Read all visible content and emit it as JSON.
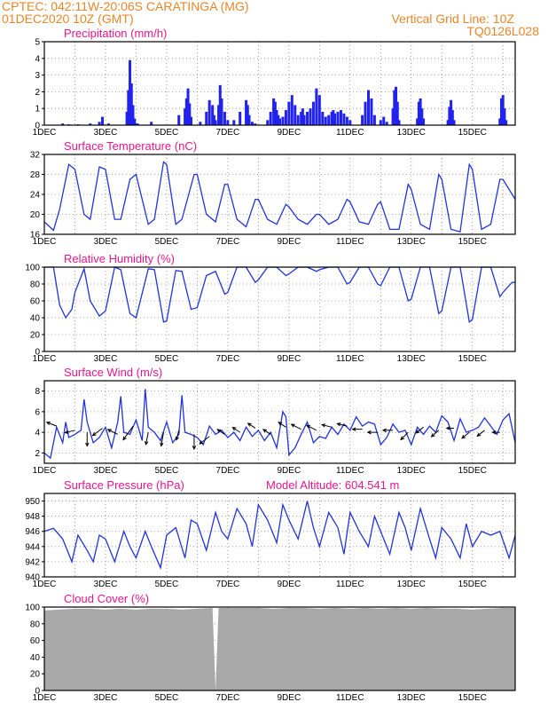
{
  "header": {
    "line1": "CPTEC:   042:11W-20:06S   CARATINGA (MG)",
    "line2": "01DEC2020 10Z (GMT)",
    "grid_note": "Vertical Grid Line: 10Z",
    "code": "TQ0126L028"
  },
  "colors": {
    "header": "#e8862a",
    "titles": "#e8168c",
    "line": "#2233dd",
    "bars": "#2222ee",
    "cloud": "#a8a8a8",
    "wind": "#000000"
  },
  "x_axis": {
    "labels": [
      "1DEC",
      "3DEC",
      "5DEC",
      "7DEC",
      "9DEC",
      "11DEC",
      "13DEC",
      "15DEC"
    ],
    "start_day": 1,
    "end_day": 16.4,
    "day_labels_step": 2
  },
  "chart_data": [
    {
      "type": "bar",
      "title": "Precipitation (mm/h)",
      "ylim": [
        0,
        5
      ],
      "yticks": [
        0,
        1,
        2,
        3,
        4,
        5
      ],
      "series": [
        {
          "name": "",
          "x": [
            1.6,
            1.8,
            2.1,
            2.5,
            2.8,
            2.9,
            3.1,
            3.7,
            3.75,
            3.8,
            3.85,
            3.9,
            3.95,
            4.0,
            4.05,
            4.5,
            5.4,
            5.6,
            5.65,
            5.7,
            5.75,
            5.8,
            6.1,
            6.3,
            6.4,
            6.5,
            6.55,
            6.6,
            6.7,
            6.75,
            6.8,
            6.9,
            7.0,
            7.2,
            7.4,
            7.6,
            7.65,
            7.7,
            7.8,
            7.9,
            8.3,
            8.4,
            8.5,
            8.55,
            8.6,
            8.65,
            8.7,
            8.8,
            8.9,
            9.0,
            9.1,
            9.2,
            9.3,
            9.4,
            9.45,
            9.5,
            9.6,
            9.7,
            9.8,
            9.9,
            10.0,
            10.1,
            10.2,
            10.3,
            10.4,
            10.45,
            10.5,
            10.6,
            10.7,
            10.8,
            10.9,
            11.0,
            11.4,
            11.5,
            11.6,
            11.7,
            11.8,
            12.0,
            12.1,
            12.2,
            12.4,
            12.45,
            12.5,
            12.55,
            12.6,
            13.2,
            13.25,
            13.3,
            13.35,
            13.4,
            14.2,
            14.25,
            14.3,
            14.35,
            14.4,
            15.9,
            15.95,
            16.0,
            16.05,
            16.1
          ],
          "values": [
            0.1,
            0.05,
            0.05,
            0.1,
            0.2,
            0.5,
            0.1,
            0.8,
            2.1,
            3.9,
            2.5,
            1.2,
            0.4,
            0.1,
            0.1,
            0.2,
            0.6,
            1.0,
            1.6,
            2.2,
            1.3,
            0.5,
            0.2,
            0.8,
            1.5,
            1.2,
            0.6,
            0.3,
            1.2,
            2.4,
            1.6,
            0.8,
            0.3,
            0.3,
            0.8,
            1.5,
            1.2,
            0.6,
            0.2,
            0.1,
            0.3,
            0.8,
            1.6,
            1.4,
            0.9,
            0.6,
            0.4,
            0.5,
            0.9,
            1.4,
            1.8,
            1.2,
            0.6,
            0.8,
            1.0,
            0.6,
            0.8,
            1.0,
            1.4,
            2.2,
            1.8,
            0.8,
            0.5,
            0.6,
            0.8,
            0.9,
            0.7,
            0.8,
            0.9,
            0.7,
            0.5,
            0.3,
            0.6,
            1.4,
            2.1,
            1.6,
            0.6,
            0.3,
            0.5,
            0.2,
            1.0,
            2.1,
            2.3,
            1.4,
            0.3,
            0.4,
            1.4,
            1.6,
            1.0,
            0.4,
            0.3,
            1.1,
            1.5,
            0.9,
            0.3,
            0.4,
            1.6,
            1.8,
            1.0,
            0.3
          ]
        }
      ]
    },
    {
      "type": "line",
      "title": "Surface Temperature (nC)",
      "ylim": [
        16,
        32
      ],
      "yticks": [
        16,
        20,
        24,
        28,
        32
      ],
      "series": [
        {
          "name": "",
          "x": [
            1.0,
            1.3,
            1.5,
            1.8,
            2.0,
            2.3,
            2.5,
            2.8,
            3.0,
            3.3,
            3.5,
            3.8,
            4.0,
            4.4,
            4.6,
            4.9,
            5.0,
            5.3,
            5.5,
            5.9,
            6.0,
            6.3,
            6.6,
            6.9,
            7.0,
            7.3,
            7.6,
            7.9,
            8.0,
            8.3,
            8.6,
            8.9,
            9.0,
            9.3,
            9.6,
            9.9,
            10.0,
            10.3,
            10.6,
            10.9,
            11.0,
            11.3,
            11.6,
            11.9,
            12.0,
            12.3,
            12.6,
            12.9,
            13.0,
            13.3,
            13.6,
            13.9,
            14.0,
            14.3,
            14.6,
            14.9,
            15.0,
            15.3,
            15.6,
            15.9,
            16.0,
            16.3,
            16.4
          ],
          "values": [
            18.5,
            16.8,
            21,
            30,
            29,
            20,
            19,
            29.5,
            29,
            19,
            19,
            27,
            28,
            18,
            19,
            30.5,
            30,
            18,
            19,
            28,
            28,
            20,
            18.5,
            26,
            26,
            19,
            17.5,
            23,
            23,
            19,
            18,
            22,
            21.5,
            19,
            18,
            20,
            20,
            18,
            19,
            23,
            22.5,
            18.5,
            18,
            22,
            22.5,
            17,
            17,
            26,
            25,
            18,
            17,
            28,
            27,
            17,
            16.5,
            30,
            29,
            17,
            18,
            27,
            27,
            24,
            23
          ]
        }
      ]
    },
    {
      "type": "line",
      "title": "Relative Humidity (%)",
      "ylim": [
        0,
        100
      ],
      "yticks": [
        0,
        20,
        40,
        60,
        80,
        100
      ],
      "series": [
        {
          "name": "",
          "x": [
            1.0,
            1.3,
            1.5,
            1.7,
            1.9,
            2.0,
            2.3,
            2.5,
            2.8,
            3.0,
            3.3,
            3.5,
            3.8,
            4.0,
            4.4,
            4.6,
            4.9,
            5.0,
            5.3,
            5.5,
            5.8,
            6.0,
            6.3,
            6.6,
            6.9,
            7.0,
            7.3,
            7.6,
            7.9,
            8.0,
            8.3,
            8.6,
            8.9,
            9.0,
            9.3,
            9.6,
            9.9,
            10.0,
            10.3,
            10.6,
            10.9,
            11.0,
            11.3,
            11.6,
            11.9,
            12.0,
            12.3,
            12.6,
            12.9,
            13.0,
            13.3,
            13.6,
            13.9,
            14.0,
            14.3,
            14.6,
            14.9,
            15.0,
            15.3,
            15.6,
            15.9,
            16.0,
            16.3,
            16.4
          ],
          "values": [
            100,
            100,
            55,
            40,
            50,
            70,
            98,
            60,
            42,
            48,
            100,
            97,
            45,
            40,
            98,
            97,
            35,
            36,
            96,
            95,
            50,
            52,
            90,
            95,
            68,
            70,
            100,
            100,
            82,
            85,
            100,
            100,
            90,
            92,
            100,
            100,
            95,
            97,
            100,
            100,
            80,
            82,
            100,
            100,
            80,
            78,
            100,
            100,
            60,
            62,
            100,
            100,
            45,
            48,
            100,
            100,
            35,
            38,
            100,
            100,
            65,
            70,
            82,
            82
          ]
        }
      ]
    },
    {
      "type": "line",
      "title": "Surface Wind (m/s)",
      "ylim": [
        1,
        9
      ],
      "yticks": [
        2,
        4,
        6,
        8
      ],
      "series": [
        {
          "name": "",
          "x": [
            1.0,
            1.2,
            1.4,
            1.6,
            1.7,
            1.8,
            2.0,
            2.2,
            2.3,
            2.4,
            2.6,
            2.8,
            3.0,
            3.2,
            3.4,
            3.5,
            3.6,
            3.8,
            4.0,
            4.2,
            4.3,
            4.4,
            4.6,
            4.8,
            5.0,
            5.2,
            5.4,
            5.5,
            5.6,
            5.8,
            6.0,
            6.2,
            6.4,
            6.6,
            6.8,
            7.0,
            7.2,
            7.4,
            7.6,
            7.8,
            8.0,
            8.2,
            8.4,
            8.6,
            8.8,
            8.9,
            9.0,
            9.2,
            9.4,
            9.6,
            9.8,
            10.0,
            10.2,
            10.4,
            10.6,
            10.8,
            11.0,
            11.2,
            11.4,
            11.6,
            11.8,
            12.0,
            12.2,
            12.4,
            12.6,
            12.8,
            13.0,
            13.2,
            13.4,
            13.6,
            13.8,
            14.0,
            14.2,
            14.4,
            14.6,
            14.8,
            15.0,
            15.2,
            15.4,
            15.6,
            15.8,
            16.0,
            16.2,
            16.4
          ],
          "values": [
            2.0,
            1.5,
            4.5,
            3.0,
            5.0,
            3.5,
            3.8,
            4.2,
            7.2,
            5.0,
            3.0,
            3.5,
            4.5,
            2.5,
            5.0,
            7.5,
            4.0,
            3.8,
            5.2,
            3.2,
            8.2,
            4.5,
            4.0,
            3.2,
            5.0,
            3.0,
            3.8,
            7.6,
            4.0,
            3.8,
            3.5,
            2.8,
            4.6,
            3.8,
            4.2,
            3.5,
            4.0,
            3.2,
            4.5,
            3.6,
            4.2,
            3.2,
            4.0,
            2.5,
            6.0,
            5.5,
            1.8,
            2.5,
            3.8,
            5.0,
            3.0,
            3.6,
            3.4,
            4.5,
            3.8,
            4.8,
            4.2,
            5.5,
            4.6,
            5.0,
            4.8,
            2.8,
            3.5,
            4.8,
            4.0,
            4.2,
            2.8,
            4.5,
            3.8,
            4.6,
            4.0,
            5.6,
            5.0,
            3.2,
            5.3,
            4.0,
            4.2,
            4.5,
            5.4,
            4.6,
            3.8,
            5.2,
            5.8,
            3.0
          ]
        }
      ],
      "wind_vectors": {
        "x": [
          1.4,
          2.0,
          2.4,
          2.9,
          3.4,
          3.9,
          4.4,
          4.9,
          5.4,
          5.9,
          6.4,
          6.9,
          7.4,
          7.9,
          8.4,
          8.9,
          9.4,
          9.9,
          10.4,
          10.9,
          11.4,
          11.9,
          12.4,
          12.9,
          13.4,
          13.9,
          14.4,
          14.9,
          15.4,
          15.9
        ],
        "y": [
          4.6,
          4.2,
          4.0,
          4.4,
          3.8,
          4.6,
          4.0,
          4.0,
          4.2,
          3.8,
          3.6,
          3.8,
          4.0,
          4.4,
          3.8,
          4.5,
          4.3,
          4.2,
          4.5,
          4.6,
          4.3,
          4.0,
          4.2,
          4.0,
          4.5,
          4.2,
          4.4,
          4.0,
          4.2,
          4.0
        ],
        "u": [
          -2,
          -2,
          0,
          -2,
          -2,
          -2,
          -0.5,
          -0.5,
          -0.5,
          0,
          -2,
          -1.5,
          -1.5,
          -1.5,
          -1.5,
          -1.5,
          -2,
          -2,
          -2,
          -2,
          -2,
          -2,
          -2,
          -1.5,
          -1.5,
          -1.5,
          -1.5,
          -1.5,
          -1.5,
          -1.5
        ],
        "v": [
          0.8,
          -0.5,
          -2.8,
          -1.5,
          1.0,
          -2.8,
          -2.5,
          -2.8,
          -2.0,
          -3.0,
          -1.5,
          1.0,
          1.0,
          1.0,
          1.0,
          1.0,
          1.0,
          1.0,
          0.5,
          0.5,
          0,
          0,
          0,
          -1.5,
          -1.2,
          -1.3,
          0,
          -1.2,
          -1.2,
          0
        ]
      }
    },
    {
      "type": "line",
      "title": "Surface Pressure (hPa)",
      "annotation": "Model Altitude: 604.541 m",
      "ylim": [
        940,
        951
      ],
      "yticks": [
        940,
        942,
        944,
        946,
        948,
        950
      ],
      "series": [
        {
          "name": "",
          "x": [
            1.0,
            1.3,
            1.6,
            1.9,
            2.1,
            2.4,
            2.6,
            2.8,
            3.0,
            3.3,
            3.6,
            3.8,
            4.0,
            4.3,
            4.5,
            4.8,
            5.0,
            5.3,
            5.6,
            5.8,
            6.0,
            6.3,
            6.6,
            6.8,
            7.0,
            7.3,
            7.6,
            7.8,
            8.0,
            8.3,
            8.6,
            8.8,
            9.0,
            9.3,
            9.6,
            9.8,
            10.0,
            10.3,
            10.6,
            10.8,
            11.0,
            11.3,
            11.6,
            11.8,
            12.0,
            12.3,
            12.6,
            12.8,
            13.0,
            13.3,
            13.6,
            13.8,
            14.0,
            14.3,
            14.6,
            14.8,
            15.0,
            15.3,
            15.6,
            15.9,
            16.2,
            16.4
          ],
          "values": [
            946,
            946.4,
            945,
            942,
            945.5,
            943.5,
            942,
            945.5,
            945,
            942,
            946,
            944,
            942.5,
            946,
            944,
            941.2,
            945.5,
            946.5,
            942.5,
            947.5,
            947,
            943.5,
            948.5,
            946,
            945,
            949,
            947,
            944,
            949.5,
            947.5,
            944.5,
            949.5,
            947.5,
            945,
            950,
            946.5,
            944,
            948.5,
            946.5,
            943,
            948.5,
            946,
            944,
            948,
            946,
            943,
            948.5,
            946.5,
            943.5,
            949,
            945,
            942.5,
            946.5,
            945,
            942.5,
            947,
            944,
            946,
            945.5,
            946,
            942.5,
            945.5
          ]
        }
      ]
    },
    {
      "type": "area",
      "title": "Cloud Cover (%)",
      "ylim": [
        0,
        100
      ],
      "yticks": [
        0,
        20,
        40,
        60,
        80,
        100
      ],
      "series": [
        {
          "name": "",
          "x": [
            1.0,
            1.5,
            2.0,
            2.5,
            3.0,
            3.5,
            4.0,
            4.5,
            5.0,
            5.5,
            6.0,
            6.5,
            6.6,
            6.7,
            7.0,
            7.5,
            8.0,
            8.5,
            9.0,
            9.5,
            10.0,
            10.5,
            11.0,
            11.5,
            12.0,
            12.5,
            13.0,
            13.5,
            14.0,
            14.5,
            15.0,
            15.5,
            16.0,
            16.4
          ],
          "values": [
            96,
            97,
            98,
            98,
            97,
            98,
            97,
            98,
            98,
            97,
            98,
            99,
            0,
            99,
            99,
            99,
            99,
            98,
            99,
            99,
            98,
            99,
            98,
            99,
            98,
            99,
            98,
            99,
            98,
            98,
            97,
            98,
            99,
            99
          ]
        }
      ]
    }
  ]
}
